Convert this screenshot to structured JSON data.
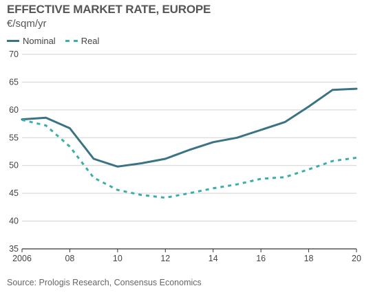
{
  "title": "EFFECTIVE MARKET RATE, EUROPE",
  "subtitle": "€/sqm/yr",
  "source": "Source: Prologis Research, Consensus Economics",
  "colors": {
    "nominal": "#3a7384",
    "real": "#3aafa9",
    "grid": "#d0d0d0",
    "axis": "#333333"
  },
  "chart_data": {
    "type": "line",
    "x": [
      2006,
      2007,
      2008,
      2009,
      2010,
      2011,
      2012,
      2013,
      2014,
      2015,
      2016,
      2017,
      2018,
      2019,
      2020
    ],
    "xtick_values": [
      2006,
      2008,
      2010,
      2012,
      2014,
      2016,
      2018,
      2020
    ],
    "xtick_labels": [
      "2006",
      "08",
      "10",
      "12",
      "14",
      "16",
      "18",
      "20"
    ],
    "yticks": [
      35,
      40,
      45,
      50,
      55,
      60,
      65,
      70
    ],
    "ylim": [
      35,
      70
    ],
    "grid": true,
    "legend_position": "top-left",
    "series": [
      {
        "name": "Nominal",
        "style": "solid",
        "values": [
          58.3,
          58.6,
          56.7,
          51.2,
          49.8,
          50.4,
          51.2,
          52.8,
          54.2,
          55.0,
          56.4,
          57.8,
          60.6,
          63.6,
          63.8
        ]
      },
      {
        "name": "Real",
        "style": "dashed",
        "values": [
          58.2,
          57.2,
          53.4,
          47.8,
          45.6,
          44.7,
          44.2,
          45.0,
          45.9,
          46.6,
          47.6,
          47.9,
          49.3,
          50.8,
          51.4
        ]
      }
    ]
  }
}
